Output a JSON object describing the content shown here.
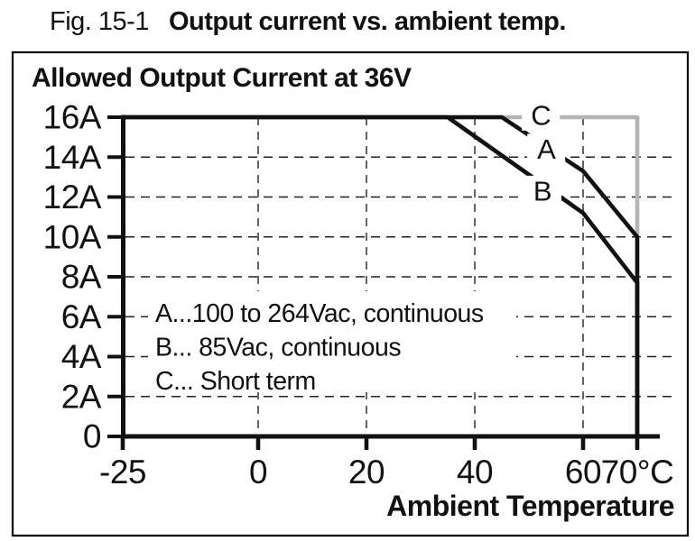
{
  "figure": {
    "label": "Fig. 15-1",
    "title": "Output current vs. ambient temp."
  },
  "chart": {
    "title": "Allowed Output Current at 36V",
    "x_axis": {
      "label": "Ambient Temperature",
      "ticks": [
        -25,
        0,
        20,
        40,
        60,
        70
      ],
      "tick_labels": [
        "-25",
        "0",
        "20",
        "40",
        "60",
        "70°C"
      ],
      "gridlines": [
        0,
        20,
        40,
        60
      ]
    },
    "y_axis": {
      "ticks": [
        0,
        2,
        4,
        6,
        8,
        10,
        12,
        14,
        16
      ],
      "tick_labels": [
        "0",
        "2A",
        "4A",
        "6A",
        "8A",
        "10A",
        "12A",
        "14A",
        "16A"
      ],
      "gridlines": [
        2,
        4,
        6,
        8,
        10,
        12,
        14
      ]
    },
    "legend": [
      "A...100 to 264Vac, continuous",
      "B... 85Vac, continuous",
      "C... Short term"
    ],
    "colors": {
      "curve_black": "#111111",
      "curve_gray": "#b4b4b4",
      "grid": "#222222",
      "text": "#111111",
      "background": "#ffffff"
    }
  },
  "chart_data": {
    "type": "line",
    "title": "Allowed Output Current at 36V",
    "xlabel": "Ambient Temperature",
    "ylabel": "Output Current",
    "xlim": [
      -25,
      70
    ],
    "ylim": [
      0,
      16
    ],
    "grid": true,
    "series": [
      {
        "name": "C",
        "description": "Short term",
        "color": "#b4b4b4",
        "points": [
          [
            -25,
            16
          ],
          [
            70,
            16
          ],
          [
            70,
            10
          ]
        ],
        "label_pos": [
          52.2,
          16.1
        ]
      },
      {
        "name": "B",
        "description": "85Vac, continuous",
        "color": "#111111",
        "points": [
          [
            -25,
            16
          ],
          [
            35,
            16
          ],
          [
            60,
            11.2
          ],
          [
            70,
            7.7
          ],
          [
            70,
            0
          ]
        ],
        "label_pos": [
          52.5,
          12.3
        ]
      },
      {
        "name": "A",
        "description": "100 to 264Vac, continuous",
        "color": "#111111",
        "points": [
          [
            -25,
            16
          ],
          [
            45,
            16
          ],
          [
            60,
            13.3
          ],
          [
            70,
            10
          ],
          [
            70,
            0
          ]
        ],
        "label_pos": [
          53.2,
          14.4
        ]
      }
    ]
  }
}
